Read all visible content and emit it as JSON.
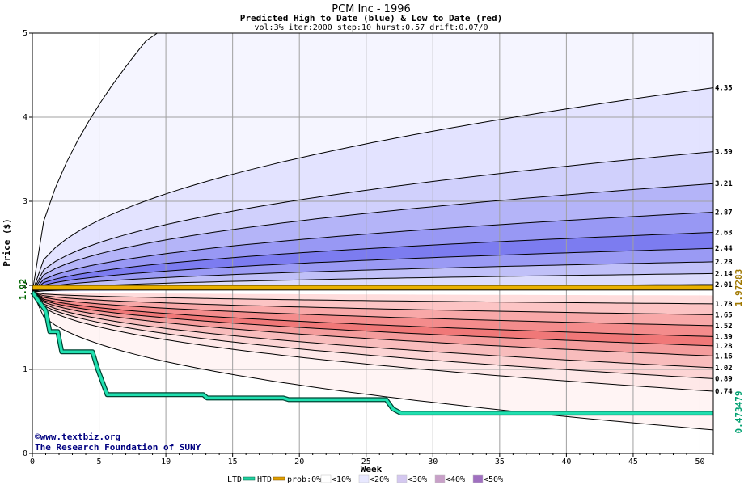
{
  "chart_data": {
    "type": "area",
    "title": "PCM Inc - 1996",
    "subtitle": "Predicted High to Date (blue) &  Low to Date (red)",
    "params": "vol:3% iter:2000 step:10 hurst:0.57 drift:0.07/0",
    "xlabel": "Week",
    "ylabel": "Price ($)",
    "xlim": [
      0,
      51
    ],
    "ylim": [
      0,
      5
    ],
    "xticks": [
      0,
      5,
      10,
      15,
      20,
      25,
      30,
      35,
      40,
      45,
      50
    ],
    "yticks": [
      0,
      1,
      2,
      3,
      4,
      5
    ],
    "grid": true,
    "start_price": "1.92",
    "start_value": 1.92,
    "high_labels": [
      "4.35",
      "3.59",
      "3.21",
      "2.87",
      "2.63",
      "2.44",
      "2.28",
      "2.14",
      "2.01"
    ],
    "high_values": [
      4.35,
      3.59,
      3.21,
      2.87,
      2.63,
      2.44,
      2.28,
      2.14,
      2.01
    ],
    "low_labels": [
      "1.78",
      "1.65",
      "1.52",
      "1.39",
      "1.28",
      "1.16",
      "1.02",
      "0.89",
      "0.74"
    ],
    "low_values": [
      1.78,
      1.65,
      1.52,
      1.39,
      1.28,
      1.16,
      1.02,
      0.89,
      0.74
    ],
    "upper_envelope_end": 5.0,
    "lower_envelope_end": 0.28,
    "band_colors_high": [
      "#f5f5ff",
      "#e3e3ff",
      "#d0d0fc",
      "#b4b4f8",
      "#9898f4",
      "#7c7cf0",
      "#9a9af4",
      "#c0c0f8",
      "#dcdcfc"
    ],
    "band_colors_low": [
      "#ffdcdc",
      "#fcc4c4",
      "#f8a8a8",
      "#f48c8c",
      "#f07878",
      "#f49c9c",
      "#f8bcbc",
      "#fcd4d4",
      "#fee8e8"
    ],
    "band_fill_outer_low": "#fff4f4",
    "actual_high": {
      "label": "1.97283",
      "value": 1.97283,
      "color": "#a07800"
    },
    "actual_low": {
      "label": "0.473479",
      "value": 0.473479,
      "color": "#00b080"
    },
    "ltd_path": [
      [
        0,
        1.92
      ],
      [
        0.3,
        1.85
      ],
      [
        1,
        1.7
      ],
      [
        1.3,
        1.45
      ],
      [
        1.9,
        1.45
      ],
      [
        2.2,
        1.21
      ],
      [
        4.5,
        1.21
      ],
      [
        4.9,
        1.0
      ],
      [
        5.6,
        0.7
      ],
      [
        12.8,
        0.7
      ],
      [
        13.1,
        0.66
      ],
      [
        18.8,
        0.66
      ],
      [
        19.2,
        0.64
      ],
      [
        26.5,
        0.64
      ],
      [
        27.0,
        0.53
      ],
      [
        27.6,
        0.48
      ],
      [
        51,
        0.48
      ]
    ],
    "credits": {
      "site": "©www.textbiz.org",
      "org": "The Research Foundation of SUNY"
    },
    "legend": {
      "ltd": "LTD",
      "htd": "HTD",
      "prob": "prob:0%",
      "bins": [
        "<10%",
        "<20%",
        "<30%",
        "<40%",
        "<50%"
      ],
      "ltd_color": "#20d0a0",
      "htd_color": "#e0a000",
      "bin_colors": [
        "#ffffff",
        "#e8e8ff",
        "#d4c8f0",
        "#c8a0c8",
        "#a070c0"
      ]
    }
  }
}
